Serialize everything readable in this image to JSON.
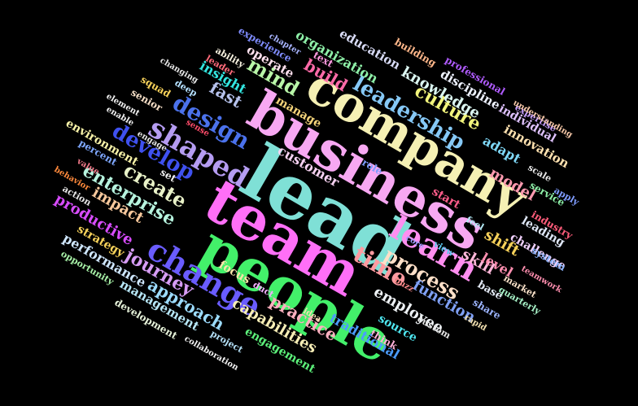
{
  "cloud": {
    "background": "#000000",
    "words": [
      {
        "text": "lead",
        "color": "#7fe0d6"
      },
      {
        "text": "business",
        "color": "#f7a8f2"
      },
      {
        "text": "company",
        "color": "#f5f0b4"
      },
      {
        "text": "team",
        "color": "#ff6ff7"
      },
      {
        "text": "people",
        "color": "#43f06a"
      },
      {
        "text": "leadership",
        "color": "#86c9f7"
      },
      {
        "text": "learn",
        "color": "#ff8ff0"
      },
      {
        "text": "change",
        "color": "#6a5cff"
      },
      {
        "text": "shaped",
        "color": "#b59cf2"
      },
      {
        "text": "design",
        "color": "#4b72ec"
      },
      {
        "text": "develop",
        "color": "#3f51f0"
      },
      {
        "text": "create",
        "color": "#e9f2c8"
      },
      {
        "text": "enterprise",
        "color": "#b7f4df"
      },
      {
        "text": "journey",
        "color": "#d69cf5"
      },
      {
        "text": "time",
        "color": "#ff9aa0"
      },
      {
        "text": "process",
        "color": "#ffe0c8"
      },
      {
        "text": "culture",
        "color": "#f2f57c"
      },
      {
        "text": "knowledge",
        "color": "#dcf7f2"
      },
      {
        "text": "organization",
        "color": "#8ef0a8"
      },
      {
        "text": "mind",
        "color": "#b9f7a8"
      },
      {
        "text": "build",
        "color": "#ff6aa8"
      },
      {
        "text": "fast",
        "color": "#b6c2ec"
      },
      {
        "text": "insight",
        "color": "#33e6e0"
      },
      {
        "text": "operate",
        "color": "#ffe0ee"
      },
      {
        "text": "manage",
        "color": "#f5d47a"
      },
      {
        "text": "customer",
        "color": "#f7d2f2"
      },
      {
        "text": "approach",
        "color": "#9cdcff"
      },
      {
        "text": "management",
        "color": "#b7e7f7"
      },
      {
        "text": "capabilities",
        "color": "#f7eeb6"
      },
      {
        "text": "practice",
        "color": "#ffb0c0"
      },
      {
        "text": "employee",
        "color": "#eef2f5"
      },
      {
        "text": "function",
        "color": "#7fa0f5"
      },
      {
        "text": "impact",
        "color": "#f7c89c"
      },
      {
        "text": "productive",
        "color": "#d84cff"
      },
      {
        "text": "performance",
        "color": "#cfe7ff"
      },
      {
        "text": "skill",
        "color": "#ffb7d9"
      },
      {
        "text": "level",
        "color": "#ff8fb0"
      },
      {
        "text": "shift",
        "color": "#f7d25a"
      },
      {
        "text": "model",
        "color": "#ff9ab0"
      },
      {
        "text": "adapt",
        "color": "#7fd8f7"
      },
      {
        "text": "innovation",
        "color": "#ffe2b0"
      },
      {
        "text": "individual",
        "color": "#dfc2ff"
      },
      {
        "text": "discipline",
        "color": "#eef2ff"
      },
      {
        "text": "education",
        "color": "#d9dcf7"
      },
      {
        "text": "professional",
        "color": "#b05cff"
      },
      {
        "text": "building",
        "color": "#ffb78a"
      },
      {
        "text": "expertise",
        "color": "#c8a0ff"
      },
      {
        "text": "understanding",
        "color": "#f7c8a8"
      },
      {
        "text": "scale",
        "color": "#e6e6e6"
      },
      {
        "text": "service",
        "color": "#8ef0a8"
      },
      {
        "text": "apply",
        "color": "#7f9cff"
      },
      {
        "text": "industry",
        "color": "#ff5c7a"
      },
      {
        "text": "leading",
        "color": "#dfe7f7"
      },
      {
        "text": "challenge",
        "color": "#f2d2ff"
      },
      {
        "text": "system",
        "color": "#8ab4ff"
      },
      {
        "text": "teamwork",
        "color": "#ff8fb0"
      },
      {
        "text": "market",
        "color": "#f7e0c8"
      },
      {
        "text": "quarterly",
        "color": "#a8f2c8"
      },
      {
        "text": "base",
        "color": "#e0e7f2"
      },
      {
        "text": "share",
        "color": "#9cb4ff"
      },
      {
        "text": "rapid",
        "color": "#f2e0b0"
      },
      {
        "text": "source",
        "color": "#4ee6f0"
      },
      {
        "text": "custom",
        "color": "#e6e6e6"
      },
      {
        "text": "think",
        "color": "#ffb0d9"
      },
      {
        "text": "traditional",
        "color": "#4b9cff"
      },
      {
        "text": "engagement",
        "color": "#5cf07a"
      },
      {
        "text": "idea",
        "color": "#f2e0b0"
      },
      {
        "text": "buzz",
        "color": "#ff8a8a"
      },
      {
        "text": "view",
        "color": "#5cc8f0"
      },
      {
        "text": "core",
        "color": "#9c9cff"
      },
      {
        "text": "feel",
        "color": "#b4ecf7"
      },
      {
        "text": "start",
        "color": "#ff5c8a"
      },
      {
        "text": "role",
        "color": "#7f9cff"
      },
      {
        "text": "focus",
        "color": "#f7e7a8"
      },
      {
        "text": "duct",
        "color": "#f2b0ff"
      },
      {
        "text": "project",
        "color": "#b4e0f7"
      },
      {
        "text": "collaboration",
        "color": "#f2f2f2"
      },
      {
        "text": "development",
        "color": "#e6f2d9"
      },
      {
        "text": "opportunity",
        "color": "#a8f2a8"
      },
      {
        "text": "strategy",
        "color": "#f7d25a"
      },
      {
        "text": "action",
        "color": "#e6e6e6"
      },
      {
        "text": "behavior",
        "color": "#ff8a3c"
      },
      {
        "text": "value",
        "color": "#f27a8a"
      },
      {
        "text": "percent",
        "color": "#7fa8ff"
      },
      {
        "text": "environment",
        "color": "#f7f2a8"
      },
      {
        "text": "engage",
        "color": "#e6e6e6"
      },
      {
        "text": "set",
        "color": "#f2f2f2"
      },
      {
        "text": "sense",
        "color": "#ff4c6a"
      },
      {
        "text": "enable",
        "color": "#f2f2f2"
      },
      {
        "text": "element",
        "color": "#f2f2f2"
      },
      {
        "text": "senior",
        "color": "#f7e0c8"
      },
      {
        "text": "squad",
        "color": "#f7d25a"
      },
      {
        "text": "deep",
        "color": "#b4e0ff"
      },
      {
        "text": "leader",
        "color": "#ff6a7a"
      },
      {
        "text": "changing",
        "color": "#e6e6e6"
      },
      {
        "text": "ability",
        "color": "#f7f2e0"
      },
      {
        "text": "chapter",
        "color": "#a8b4ff"
      },
      {
        "text": "text",
        "color": "#ff9ae0"
      },
      {
        "text": "experience",
        "color": "#7f8cff"
      }
    ]
  }
}
